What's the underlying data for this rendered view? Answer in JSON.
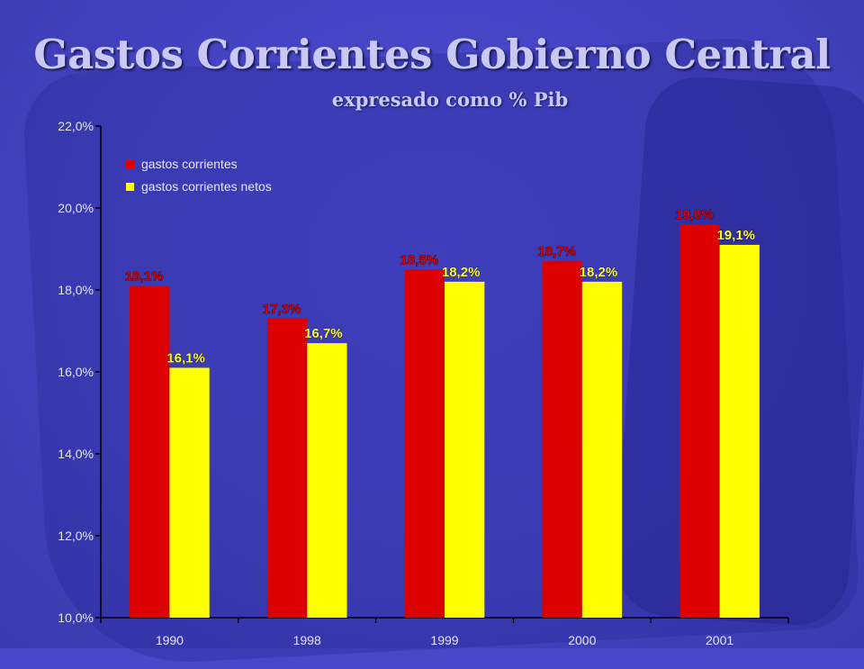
{
  "header": {
    "title": "Gastos Corrientes Gobierno Central",
    "subtitle": "expresado como % Pib"
  },
  "chart_data": {
    "type": "bar",
    "categories": [
      "1990",
      "1998",
      "1999",
      "2000",
      "2001"
    ],
    "series": [
      {
        "name": "gastos corrientes",
        "color": "#dd0000",
        "values": [
          18.1,
          17.3,
          18.5,
          18.7,
          19.6
        ],
        "labels": [
          "18,1%",
          "17,3%",
          "18,5%",
          "18,7%",
          "19,6%"
        ]
      },
      {
        "name": "gastos corrientes netos",
        "color": "#ffff00",
        "values": [
          16.1,
          16.7,
          18.2,
          18.2,
          19.1
        ],
        "labels": [
          "16,1%",
          "16,7%",
          "18,2%",
          "18,2%",
          "19,1%"
        ]
      }
    ],
    "ylim": [
      10,
      22
    ],
    "yticks": [
      10,
      12,
      14,
      16,
      18,
      20,
      22
    ],
    "ytick_labels": [
      "10,0%",
      "12,0%",
      "14,0%",
      "16,0%",
      "18,0%",
      "20,0%",
      "22,0%"
    ],
    "legend": "top-left",
    "grid": false
  }
}
